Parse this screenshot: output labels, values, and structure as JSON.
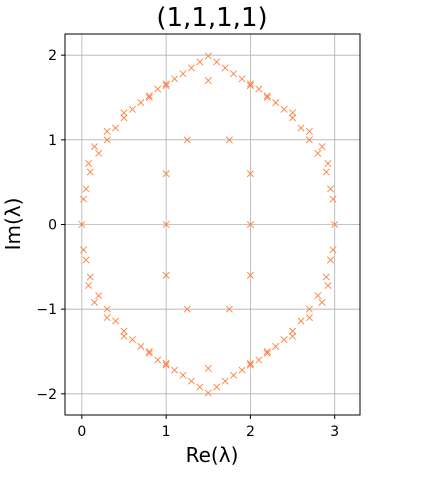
{
  "chart_data": {
    "type": "scatter",
    "title": "(1,1,1,1)",
    "xlabel": "Re(λ)",
    "ylabel": "Im(λ)",
    "xlim": [
      -0.2,
      3.3
    ],
    "ylim": [
      -2.25,
      2.25
    ],
    "x_ticks": [
      0,
      1,
      2,
      3
    ],
    "x_tick_labels": [
      "0",
      "1",
      "2",
      "3"
    ],
    "y_ticks": [
      -2,
      -1,
      0,
      1,
      2
    ],
    "y_tick_labels": [
      "−2",
      "−1",
      "0",
      "1",
      "2"
    ],
    "grid": true,
    "marker": "x",
    "color": "#ff8040",
    "series": [
      {
        "x": [
          1.5,
          1.4,
          1.6,
          1.3,
          1.7,
          1.2,
          1.8,
          1.1,
          1.9,
          1.0,
          2.0,
          0.9,
          2.1,
          0.8,
          2.2,
          0.7,
          2.3,
          0.6,
          2.4,
          0.5,
          2.5,
          0.4,
          2.6,
          0.3,
          2.7,
          0.2,
          2.8,
          0.1,
          2.9,
          0.05,
          2.95,
          0.0,
          3.0,
          0.02,
          2.98,
          0.08,
          2.92,
          0.15,
          2.85,
          0.3,
          2.7,
          0.5,
          2.5,
          0.8,
          2.2,
          1.0,
          2.0,
          1.5,
          1.4,
          1.6,
          1.3,
          1.7,
          1.2,
          1.8,
          1.1,
          1.9,
          1.0,
          2.0,
          0.9,
          2.1,
          0.8,
          2.2,
          0.7,
          2.3,
          0.6,
          2.4,
          0.5,
          2.5,
          0.4,
          2.6,
          0.3,
          2.7,
          0.2,
          2.8,
          0.1,
          2.9,
          0.05,
          2.95,
          0.02,
          2.98,
          0.08,
          2.92,
          0.15,
          2.85,
          0.3,
          2.7,
          0.5,
          2.5,
          0.8,
          2.2,
          1.0,
          2.0,
          1.0,
          2.0,
          1.0,
          2.0,
          1.0,
          2.0,
          1.25,
          1.75,
          1.25,
          1.75,
          1.5,
          1.5
        ],
        "y": [
          1.99,
          1.92,
          1.92,
          1.85,
          1.85,
          1.78,
          1.78,
          1.72,
          1.72,
          1.66,
          1.66,
          1.6,
          1.6,
          1.52,
          1.52,
          1.44,
          1.44,
          1.36,
          1.36,
          1.26,
          1.26,
          1.14,
          1.14,
          1.0,
          1.0,
          0.84,
          0.84,
          0.62,
          0.62,
          0.42,
          0.42,
          0.0,
          0.0,
          0.3,
          0.3,
          0.72,
          0.72,
          0.92,
          0.92,
          1.1,
          1.1,
          1.32,
          1.32,
          1.5,
          1.5,
          1.64,
          1.64,
          -1.99,
          -1.92,
          -1.92,
          -1.85,
          -1.85,
          -1.78,
          -1.78,
          -1.72,
          -1.72,
          -1.66,
          -1.66,
          -1.6,
          -1.6,
          -1.52,
          -1.52,
          -1.44,
          -1.44,
          -1.36,
          -1.36,
          -1.26,
          -1.26,
          -1.14,
          -1.14,
          -1.0,
          -1.0,
          -0.84,
          -0.84,
          -0.62,
          -0.62,
          -0.42,
          -0.42,
          -0.3,
          -0.3,
          -0.72,
          -0.72,
          -0.92,
          -0.92,
          -1.1,
          -1.1,
          -1.32,
          -1.32,
          -1.5,
          -1.5,
          -1.64,
          -1.64,
          0.0,
          0.0,
          0.6,
          0.6,
          -0.6,
          -0.6,
          1.0,
          1.0,
          -1.0,
          -1.0,
          1.7,
          -1.7
        ]
      }
    ]
  }
}
